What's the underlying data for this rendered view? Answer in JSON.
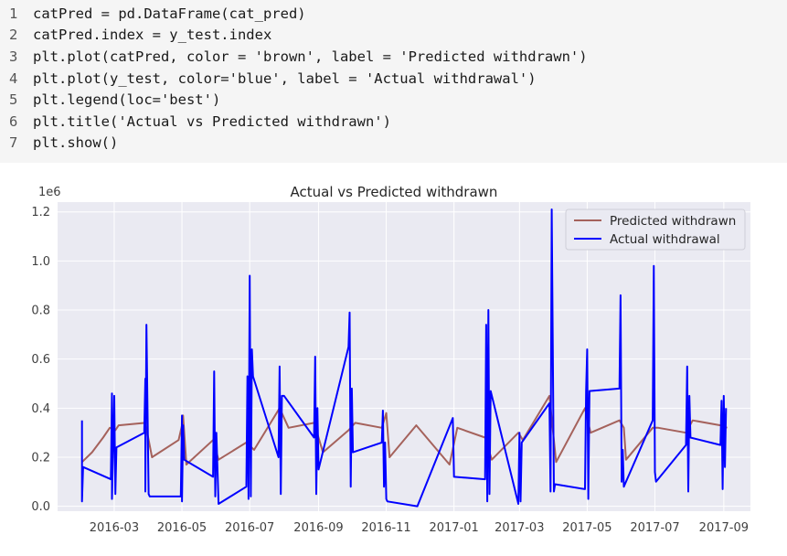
{
  "code": {
    "lines": [
      "catPred = pd.DataFrame(cat_pred)",
      "catPred.index = y_test.index",
      "plt.plot(catPred, color = 'brown', label = 'Predicted withdrawn')",
      "plt.plot(y_test, color='blue', label = 'Actual withdrawal')",
      "plt.legend(loc='best')",
      "plt.title('Actual vs Predicted withdrawn')",
      "plt.show()"
    ],
    "line_numbers": [
      "1",
      "2",
      "3",
      "4",
      "5",
      "6",
      "7"
    ]
  },
  "chart_data": {
    "type": "line",
    "title": "Actual vs Predicted withdrawn",
    "xlabel": "",
    "ylabel": "",
    "y_offset_label": "1e6",
    "xlim": [
      "2016-01-10",
      "2017-09-25"
    ],
    "ylim": [
      -0.02,
      1.24
    ],
    "x_ticks": [
      "2016-03-01",
      "2016-05-01",
      "2016-07-01",
      "2016-09-01",
      "2016-11-01",
      "2017-01-01",
      "2017-03-01",
      "2017-05-01",
      "2017-07-01",
      "2017-09-01"
    ],
    "x_tick_labels": [
      "2016-03",
      "2016-05",
      "2016-07",
      "2016-09",
      "2016-11",
      "2017-01",
      "2017-03",
      "2017-05",
      "2017-07",
      "2017-09"
    ],
    "y_ticks": [
      0.0,
      0.2,
      0.4,
      0.6,
      0.8,
      1.0,
      1.2
    ],
    "y_tick_labels": [
      "0.0",
      "0.2",
      "0.4",
      "0.6",
      "0.8",
      "1.0",
      "1.2"
    ],
    "grid": true,
    "legend_position": "top-right",
    "series": [
      {
        "name": "Predicted withdrawn",
        "color": "#a5625c",
        "points": [
          [
            "2016-02-01",
            0.18
          ],
          [
            "2016-02-10",
            0.22
          ],
          [
            "2016-02-20",
            0.28
          ],
          [
            "2016-02-26",
            0.32
          ],
          [
            "2016-03-02",
            0.31
          ],
          [
            "2016-03-05",
            0.33
          ],
          [
            "2016-03-29",
            0.34
          ],
          [
            "2016-04-04",
            0.2
          ],
          [
            "2016-04-28",
            0.27
          ],
          [
            "2016-05-01",
            0.33
          ],
          [
            "2016-05-02",
            0.37
          ],
          [
            "2016-05-05",
            0.17
          ],
          [
            "2016-05-29",
            0.27
          ],
          [
            "2016-06-03",
            0.19
          ],
          [
            "2016-06-28",
            0.26
          ],
          [
            "2016-07-05",
            0.23
          ],
          [
            "2016-07-28",
            0.4
          ],
          [
            "2016-08-05",
            0.32
          ],
          [
            "2016-08-28",
            0.34
          ],
          [
            "2016-09-05",
            0.22
          ],
          [
            "2016-09-28",
            0.31
          ],
          [
            "2016-10-04",
            0.34
          ],
          [
            "2016-10-28",
            0.32
          ],
          [
            "2016-11-01",
            0.38
          ],
          [
            "2016-11-04",
            0.2
          ],
          [
            "2016-11-28",
            0.33
          ],
          [
            "2016-12-28",
            0.17
          ],
          [
            "2017-01-04",
            0.32
          ],
          [
            "2017-01-29",
            0.28
          ],
          [
            "2017-02-04",
            0.19
          ],
          [
            "2017-02-28",
            0.3
          ],
          [
            "2017-03-04",
            0.27
          ],
          [
            "2017-03-28",
            0.45
          ],
          [
            "2017-04-03",
            0.18
          ],
          [
            "2017-04-29",
            0.4
          ],
          [
            "2017-05-04",
            0.3
          ],
          [
            "2017-05-30",
            0.35
          ],
          [
            "2017-06-03",
            0.32
          ],
          [
            "2017-06-05",
            0.19
          ],
          [
            "2017-06-29",
            0.32
          ],
          [
            "2017-07-04",
            0.32
          ],
          [
            "2017-07-29",
            0.3
          ],
          [
            "2017-08-04",
            0.35
          ],
          [
            "2017-08-29",
            0.33
          ],
          [
            "2017-09-04",
            0.32
          ]
        ]
      },
      {
        "name": "Actual withdrawal",
        "color": "#0000ff",
        "points": [
          [
            "2016-02-01",
            0.35
          ],
          [
            "2016-02-01",
            0.02
          ],
          [
            "2016-02-02",
            0.16
          ],
          [
            "2016-02-27",
            0.11
          ],
          [
            "2016-02-28",
            0.46
          ],
          [
            "2016-02-28",
            0.03
          ],
          [
            "2016-03-01",
            0.45
          ],
          [
            "2016-03-02",
            0.05
          ],
          [
            "2016-03-03",
            0.24
          ],
          [
            "2016-03-28",
            0.3
          ],
          [
            "2016-03-29",
            0.52
          ],
          [
            "2016-03-29",
            0.06
          ],
          [
            "2016-03-30",
            0.74
          ],
          [
            "2016-04-01",
            0.05
          ],
          [
            "2016-04-02",
            0.04
          ],
          [
            "2016-04-29",
            0.04
          ],
          [
            "2016-04-30",
            0.04
          ],
          [
            "2016-05-01",
            0.37
          ],
          [
            "2016-05-01",
            0.02
          ],
          [
            "2016-05-02",
            0.33
          ],
          [
            "2016-05-03",
            0.19
          ],
          [
            "2016-05-29",
            0.12
          ],
          [
            "2016-05-30",
            0.55
          ],
          [
            "2016-05-31",
            0.04
          ],
          [
            "2016-06-01",
            0.3
          ],
          [
            "2016-06-03",
            0.01
          ],
          [
            "2016-06-28",
            0.08
          ],
          [
            "2016-06-29",
            0.53
          ],
          [
            "2016-06-30",
            0.03
          ],
          [
            "2016-07-01",
            0.94
          ],
          [
            "2016-07-02",
            0.04
          ],
          [
            "2016-07-03",
            0.64
          ],
          [
            "2016-07-04",
            0.53
          ],
          [
            "2016-07-27",
            0.2
          ],
          [
            "2016-07-28",
            0.57
          ],
          [
            "2016-07-29",
            0.05
          ],
          [
            "2016-07-30",
            0.45
          ],
          [
            "2016-08-01",
            0.45
          ],
          [
            "2016-08-28",
            0.28
          ],
          [
            "2016-08-29",
            0.61
          ],
          [
            "2016-08-30",
            0.05
          ],
          [
            "2016-08-31",
            0.4
          ],
          [
            "2016-09-01",
            0.15
          ],
          [
            "2016-09-28",
            0.65
          ],
          [
            "2016-09-29",
            0.79
          ],
          [
            "2016-09-30",
            0.08
          ],
          [
            "2016-10-01",
            0.48
          ],
          [
            "2016-10-02",
            0.22
          ],
          [
            "2016-10-28",
            0.26
          ],
          [
            "2016-10-29",
            0.39
          ],
          [
            "2016-10-30",
            0.08
          ],
          [
            "2016-10-31",
            0.26
          ],
          [
            "2016-11-01",
            0.03
          ],
          [
            "2016-11-02",
            0.02
          ],
          [
            "2016-11-29",
            0.0
          ],
          [
            "2016-12-31",
            0.36
          ],
          [
            "2017-01-01",
            0.12
          ],
          [
            "2017-01-29",
            0.11
          ],
          [
            "2017-01-30",
            0.74
          ],
          [
            "2017-01-31",
            0.02
          ],
          [
            "2017-02-01",
            0.8
          ],
          [
            "2017-02-02",
            0.05
          ],
          [
            "2017-02-03",
            0.47
          ],
          [
            "2017-02-28",
            0.01
          ],
          [
            "2017-03-01",
            0.3
          ],
          [
            "2017-03-02",
            0.02
          ],
          [
            "2017-03-03",
            0.26
          ],
          [
            "2017-03-28",
            0.42
          ],
          [
            "2017-03-29",
            0.06
          ],
          [
            "2017-03-30",
            1.21
          ],
          [
            "2017-04-01",
            0.06
          ],
          [
            "2017-04-02",
            0.09
          ],
          [
            "2017-04-29",
            0.07
          ],
          [
            "2017-04-30",
            0.47
          ],
          [
            "2017-05-01",
            0.64
          ],
          [
            "2017-05-02",
            0.03
          ],
          [
            "2017-05-03",
            0.47
          ],
          [
            "2017-05-30",
            0.48
          ],
          [
            "2017-05-31",
            0.86
          ],
          [
            "2017-06-01",
            0.1
          ],
          [
            "2017-06-02",
            0.23
          ],
          [
            "2017-06-03",
            0.08
          ],
          [
            "2017-06-29",
            0.35
          ],
          [
            "2017-06-30",
            0.98
          ],
          [
            "2017-07-01",
            0.14
          ],
          [
            "2017-07-02",
            0.1
          ],
          [
            "2017-07-29",
            0.25
          ],
          [
            "2017-07-30",
            0.57
          ],
          [
            "2017-07-31",
            0.06
          ],
          [
            "2017-08-01",
            0.45
          ],
          [
            "2017-08-02",
            0.28
          ],
          [
            "2017-08-29",
            0.25
          ],
          [
            "2017-08-30",
            0.43
          ],
          [
            "2017-08-31",
            0.07
          ],
          [
            "2017-09-01",
            0.45
          ],
          [
            "2017-09-02",
            0.16
          ],
          [
            "2017-09-03",
            0.4
          ]
        ]
      }
    ]
  }
}
